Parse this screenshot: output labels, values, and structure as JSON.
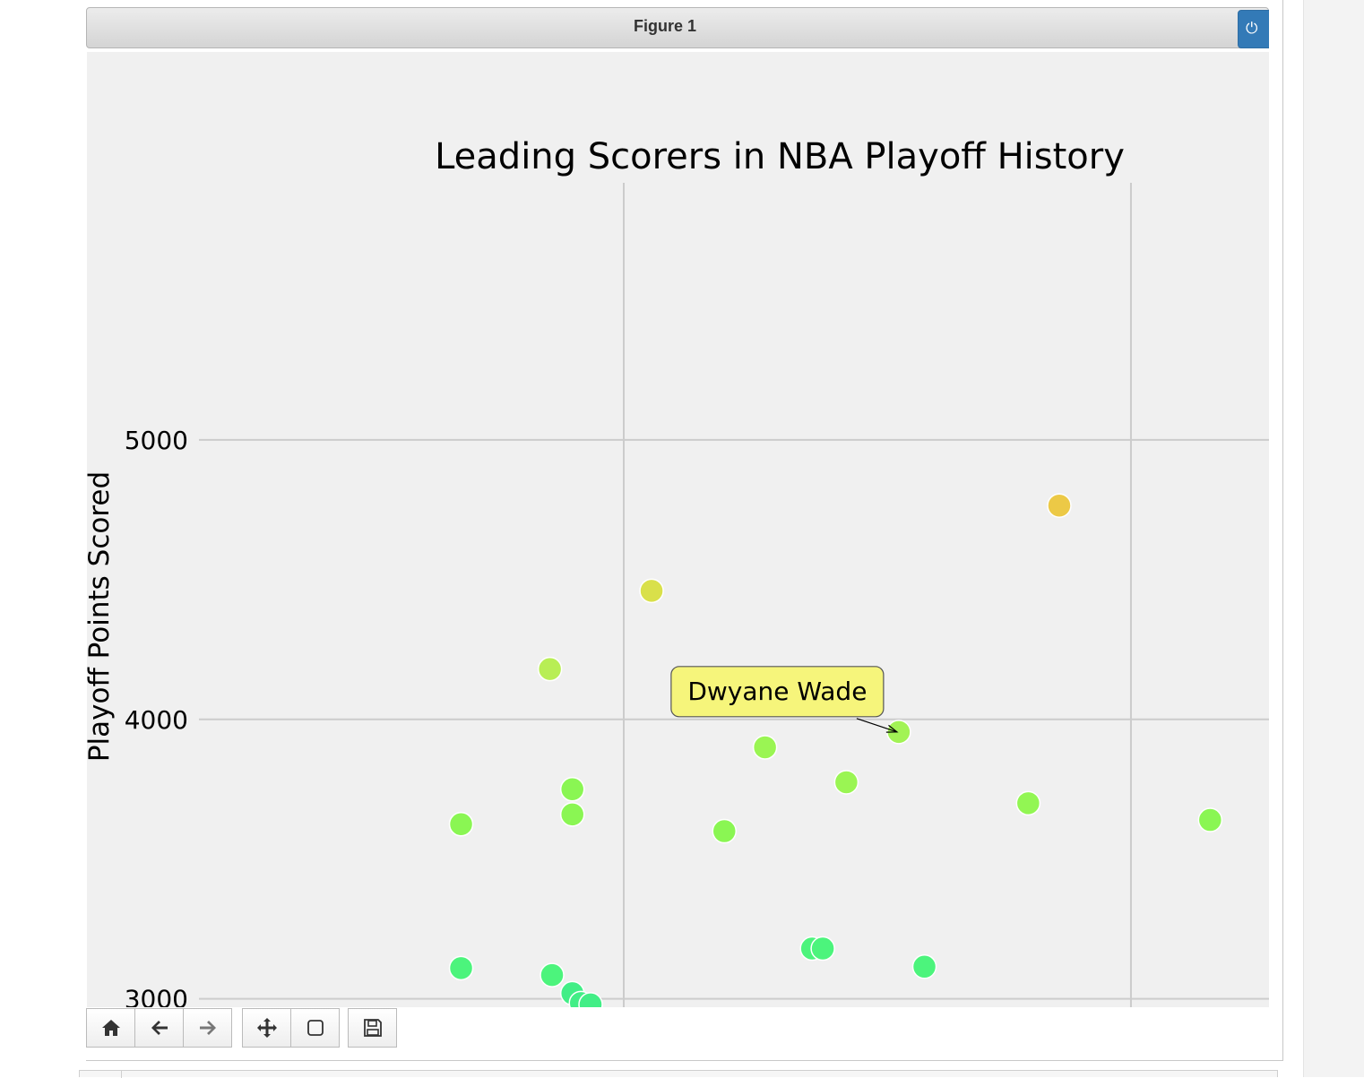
{
  "window": {
    "title": "Figure 1",
    "close_icon": "power-icon"
  },
  "toolbar": {
    "buttons": [
      {
        "name": "home-button",
        "icon": "home-icon",
        "enabled": true
      },
      {
        "name": "back-button",
        "icon": "arrow-left-icon",
        "enabled": true
      },
      {
        "name": "forward-button",
        "icon": "arrow-right-icon",
        "enabled": false
      },
      {
        "name": "pan-button",
        "icon": "move-icon",
        "enabled": true
      },
      {
        "name": "zoom-button",
        "icon": "square-icon",
        "enabled": true
      },
      {
        "name": "save-button",
        "icon": "save-icon",
        "enabled": true
      }
    ]
  },
  "colors": {
    "accent": "#337ab7",
    "annotation_bg": "#f6f57b",
    "grid": "#cccccc",
    "background": "#f0f0f0"
  },
  "chart_data": {
    "type": "scatter",
    "title": "Leading Scorers in NBA Playoff History",
    "xlabel": "",
    "ylabel": "Playoff Points Scored",
    "yticks": [
      3000,
      4000,
      5000
    ],
    "ylim": [
      2970,
      5920
    ],
    "xlim": [
      0,
      1
    ],
    "x_gridlines": [
      0.397,
      0.871
    ],
    "grid": true,
    "annotation": {
      "text": "Dwyane Wade",
      "point_index": 11
    },
    "points": [
      {
        "x": 0.245,
        "y": 3110,
        "color": "#4cf47c"
      },
      {
        "x": 0.245,
        "y": 3625,
        "color": "#8af653"
      },
      {
        "x": 0.33,
        "y": 3085,
        "color": "#4cf47c"
      },
      {
        "x": 0.349,
        "y": 3020,
        "color": "#42ee86"
      },
      {
        "x": 0.357,
        "y": 2985,
        "color": "#42ee86"
      },
      {
        "x": 0.366,
        "y": 2980,
        "color": "#42ee86"
      },
      {
        "x": 0.328,
        "y": 4180,
        "color": "#b8ee55"
      },
      {
        "x": 0.349,
        "y": 3750,
        "color": "#8af653"
      },
      {
        "x": 0.349,
        "y": 3660,
        "color": "#8af653"
      },
      {
        "x": 0.423,
        "y": 4460,
        "color": "#d9e04a"
      },
      {
        "x": 0.491,
        "y": 3600,
        "color": "#8af653"
      },
      {
        "x": 0.654,
        "y": 3955,
        "color": "#a2f355"
      },
      {
        "x": 0.529,
        "y": 3900,
        "color": "#9af553"
      },
      {
        "x": 0.605,
        "y": 3775,
        "color": "#9af553"
      },
      {
        "x": 0.573,
        "y": 3180,
        "color": "#4cf47c"
      },
      {
        "x": 0.583,
        "y": 3180,
        "color": "#4cf47c"
      },
      {
        "x": 0.678,
        "y": 3115,
        "color": "#4cf47c"
      },
      {
        "x": 0.775,
        "y": 3700,
        "color": "#92f653"
      },
      {
        "x": 0.804,
        "y": 4765,
        "color": "#ecc946"
      },
      {
        "x": 0.945,
        "y": 3640,
        "color": "#8af653"
      }
    ]
  }
}
